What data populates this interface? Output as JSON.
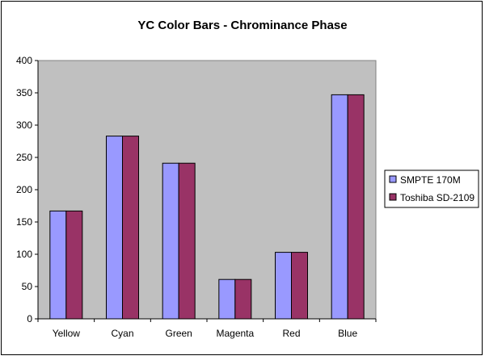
{
  "chart_data": {
    "type": "bar",
    "title": "YC Color Bars - Chrominance Phase",
    "xlabel": "",
    "ylabel": "",
    "categories": [
      "Yellow",
      "Cyan",
      "Green",
      "Magenta",
      "Red",
      "Blue"
    ],
    "series": [
      {
        "name": "SMPTE 170M",
        "values": [
          167,
          283,
          241,
          61,
          103,
          347
        ]
      },
      {
        "name": "Toshiba SD-2109",
        "values": [
          167,
          283,
          241,
          61,
          103,
          347
        ]
      }
    ],
    "ylim": [
      0,
      400
    ],
    "yticks": [
      0,
      50,
      100,
      150,
      200,
      250,
      300,
      350,
      400
    ],
    "grid": false,
    "legend_position": "right",
    "colors": {
      "plot_background": "#c0c0c0",
      "series": [
        "#9999ff",
        "#993366"
      ]
    }
  }
}
